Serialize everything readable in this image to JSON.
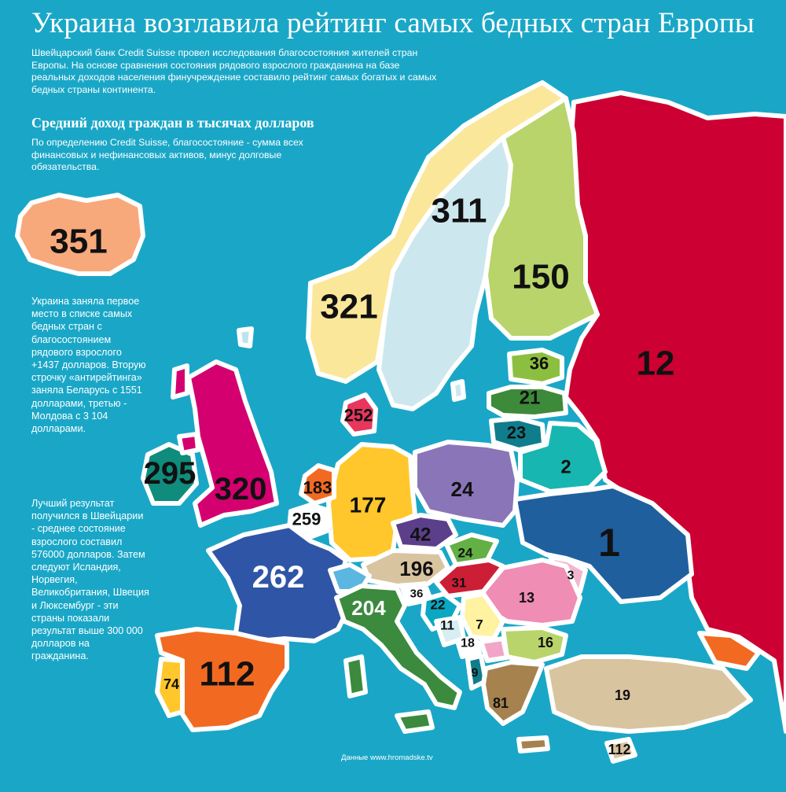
{
  "header": {
    "title": "Украина возглавила рейтинг самых бедных стран Европы",
    "intro": "Швейцарский банк Credit Suisse провел исследования благосостояния жителей стран Европы. На основе сравнения состояния рядового взрослого гражданина на базе реальных доходов населения финучреждение составило рейтинг самых богатых и самых бедных страны континента.",
    "subtitle": "Средний доход граждан в тысячах долларов",
    "definition": "По определению Credit Suisse, благосостояние - сумма всех финансовых и нефинансовых активов, минус долговые обязательства."
  },
  "notes": {
    "ukraine": "Украина заняла первое место в списке самых бедных стран с благосостоянием рядового взрослого +1437 долларов. Вторую строчку «антирейтинга» заняла Беларусь с 1551 долларами, третью - Молдова с 3 104 долларами.",
    "best": "Лучший результат получился в Швейцарии - среднее состояние взрослого составил 576000 долларов. Затем следуют Исландия, Норвегия, Великобритания, Швеция и Люксембург - эти страны показали результат выше 300 000 долларов на гражданина."
  },
  "source": "Данные www.hromadske.tv",
  "colors": {
    "sea": "#1aa7c7",
    "border": "#ffffff"
  },
  "regions": [
    {
      "id": "iceland",
      "value": "351",
      "color": "#f7a97c"
    },
    {
      "id": "norway",
      "value": "321",
      "color": "#fbe79a"
    },
    {
      "id": "sweden",
      "value": "311",
      "color": "#cde7ef"
    },
    {
      "id": "finland",
      "value": "150",
      "color": "#b9d46a"
    },
    {
      "id": "russia",
      "value": "12",
      "color": "#cc0033"
    },
    {
      "id": "estonia",
      "value": "36",
      "color": "#8cbf3f"
    },
    {
      "id": "latvia",
      "value": "21",
      "color": "#3d8a3a"
    },
    {
      "id": "lithuania",
      "value": "23",
      "color": "#0f7d8c"
    },
    {
      "id": "belarus",
      "value": "2",
      "color": "#18b6b0"
    },
    {
      "id": "ukraine",
      "value": "1",
      "color": "#1f5f9e"
    },
    {
      "id": "denmark",
      "value": "252",
      "color": "#e8365d"
    },
    {
      "id": "ireland",
      "value": "295",
      "color": "#0f8c7c"
    },
    {
      "id": "uk",
      "value": "320",
      "color": "#d4006f"
    },
    {
      "id": "netherlands",
      "value": "183",
      "color": "#f26a21"
    },
    {
      "id": "belgium",
      "value": "259",
      "color": "#ffffff"
    },
    {
      "id": "germany",
      "value": "177",
      "color": "#ffc72c"
    },
    {
      "id": "poland",
      "value": "24",
      "color": "#8a75b8"
    },
    {
      "id": "czech",
      "value": "42",
      "color": "#5c3f8a"
    },
    {
      "id": "slovakia",
      "value": "24",
      "color": "#63b045"
    },
    {
      "id": "austria",
      "value": "196",
      "color": "#d9c4a0"
    },
    {
      "id": "hungary",
      "value": "31",
      "color": "#cc1f36"
    },
    {
      "id": "france",
      "value": "262",
      "color": "#2f55a6"
    },
    {
      "id": "switzerland",
      "value": "",
      "color": "#5bb6e0"
    },
    {
      "id": "slovenia",
      "value": "36",
      "color": "#ffffff"
    },
    {
      "id": "croatia",
      "value": "22",
      "color": "#0aa8c2"
    },
    {
      "id": "bosnia",
      "value": "11",
      "color": "#d7eef3"
    },
    {
      "id": "serbia",
      "value": "7",
      "color": "#fff2a0"
    },
    {
      "id": "montenegro",
      "value": "18",
      "color": "#ffffff"
    },
    {
      "id": "albania",
      "value": "9",
      "color": "#0f7d8c"
    },
    {
      "id": "macedonia",
      "value": "",
      "color": "#f1a6c8"
    },
    {
      "id": "moldova",
      "value": "3",
      "color": "#f3b6cf"
    },
    {
      "id": "romania",
      "value": "13",
      "color": "#ef8db4"
    },
    {
      "id": "bulgaria",
      "value": "16",
      "color": "#b9d46a"
    },
    {
      "id": "italy",
      "value": "204",
      "color": "#3b8a3e"
    },
    {
      "id": "spain",
      "value": "112",
      "color": "#f26a21"
    },
    {
      "id": "portugal",
      "value": "74",
      "color": "#ffc72c"
    },
    {
      "id": "greece",
      "value": "81",
      "color": "#a5824e"
    },
    {
      "id": "turkey",
      "value": "19",
      "color": "#d9c4a0"
    },
    {
      "id": "cyprus",
      "value": "112",
      "color": "#d9c4a0"
    },
    {
      "id": "georgia",
      "value": "",
      "color": "#f26a21"
    }
  ]
}
